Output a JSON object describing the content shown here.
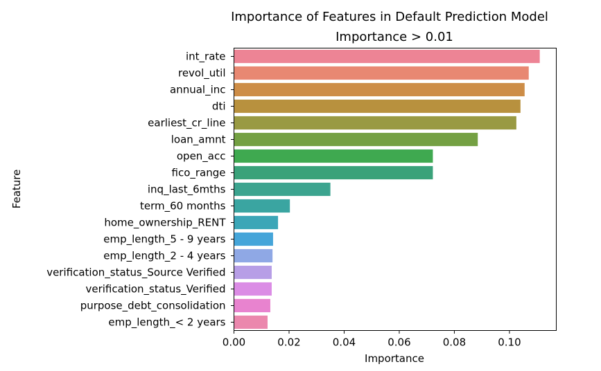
{
  "chart_data": {
    "type": "bar",
    "orientation": "horizontal",
    "title": "Importance of Features in Default Prediction Model",
    "subtitle": "Importance > 0.01",
    "xlabel": "Importance",
    "ylabel": "Feature",
    "xlim": [
      0,
      0.117
    ],
    "xticks": [
      "0.00",
      "0.02",
      "0.04",
      "0.06",
      "0.08",
      "0.10"
    ],
    "categories": [
      "int_rate",
      "revol_util",
      "annual_inc",
      "dti",
      "earliest_cr_line",
      "loan_amnt",
      "open_acc",
      "fico_range",
      "inq_last_6mths",
      "term_60 months",
      "home_ownership_RENT",
      "emp_length_5 - 9 years",
      "emp_length_2 - 4 years",
      "verification_status_Source Verified",
      "verification_status_Verified",
      "purpose_debt_consolidation",
      "emp_length_< 2 years"
    ],
    "values": [
      0.111,
      0.107,
      0.1055,
      0.104,
      0.1025,
      0.0885,
      0.0722,
      0.0722,
      0.035,
      0.0203,
      0.016,
      0.0142,
      0.014,
      0.0137,
      0.0137,
      0.0132,
      0.0122
    ],
    "colors": [
      "#ed8495",
      "#e88872",
      "#cd8d47",
      "#b8913e",
      "#999a43",
      "#74a043",
      "#3fa950",
      "#3aa27a",
      "#3ca48f",
      "#3aa5a1",
      "#3ba6b7",
      "#45a5d9",
      "#8fa8e5",
      "#b79ee6",
      "#db8ce5",
      "#e883cf",
      "#eb87ad"
    ],
    "grid": false,
    "legend": "none"
  }
}
